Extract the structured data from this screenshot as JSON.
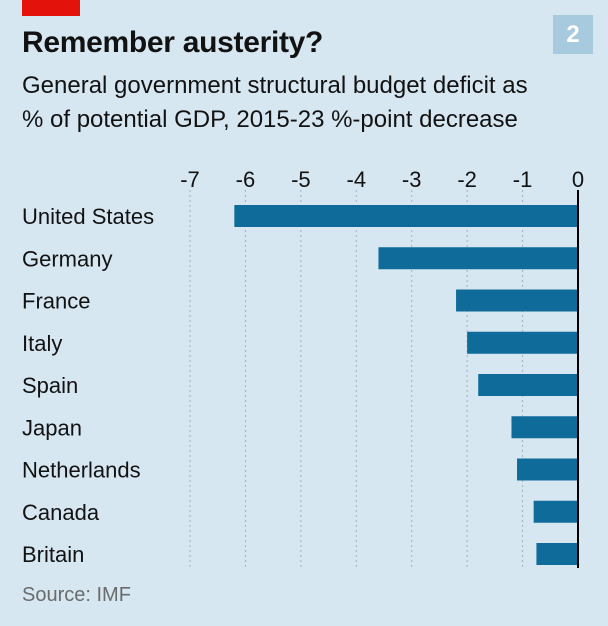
{
  "badge": "2",
  "title": "Remember austerity?",
  "subtitle_line1": "General government structural budget deficit as",
  "subtitle_line2": "% of potential GDP, 2015-23 %-point decrease",
  "source": "Source: IMF",
  "colors": {
    "bar": "#0f6b99",
    "accent": "#e3120b",
    "badge": "#a7cadf",
    "background": "#d7e7f1"
  },
  "chart_data": {
    "type": "bar",
    "orientation": "horizontal",
    "categories": [
      "United States",
      "Germany",
      "France",
      "Italy",
      "Spain",
      "Japan",
      "Netherlands",
      "Canada",
      "Britain"
    ],
    "values": [
      -6.2,
      -3.6,
      -2.2,
      -2.0,
      -1.8,
      -1.2,
      -1.1,
      -0.8,
      -0.75
    ],
    "xlim": [
      -7,
      0
    ],
    "xticks": [
      "-7",
      "-6",
      "-5",
      "-4",
      "-3",
      "-2",
      "-1",
      "0"
    ],
    "tick_values": [
      -7,
      -6,
      -5,
      -4,
      -3,
      -2,
      -1,
      0
    ],
    "grid": true,
    "axis_position": "top"
  }
}
